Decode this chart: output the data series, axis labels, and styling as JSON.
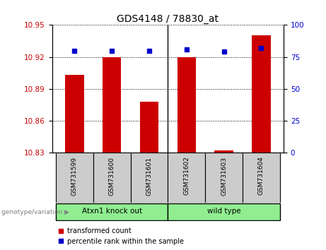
{
  "title": "GDS4148 / 78830_at",
  "categories": [
    "GSM731599",
    "GSM731600",
    "GSM731601",
    "GSM731602",
    "GSM731603",
    "GSM731604"
  ],
  "red_values": [
    10.903,
    10.92,
    10.878,
    10.92,
    10.832,
    10.94
  ],
  "blue_values": [
    80,
    80,
    80,
    81,
    79,
    82
  ],
  "baseline": 10.83,
  "ylim_left": [
    10.83,
    10.95
  ],
  "ylim_right": [
    0,
    100
  ],
  "yticks_left": [
    10.83,
    10.86,
    10.89,
    10.92,
    10.95
  ],
  "yticks_right": [
    0,
    25,
    50,
    75,
    100
  ],
  "group1_label": "Atxn1 knock out",
  "group2_label": "wild type",
  "group1_indices": [
    0,
    1,
    2
  ],
  "group2_indices": [
    3,
    4,
    5
  ],
  "group_label_prefix": "genotype/variation",
  "legend_red": "transformed count",
  "legend_blue": "percentile rank within the sample",
  "bar_color": "#cc0000",
  "dot_color": "#0000cc",
  "group_color": "#90ee90",
  "cell_color": "#cccccc",
  "tick_label_color_left": "#cc0000",
  "tick_label_color_right": "#0000cc",
  "bar_width": 0.5,
  "fig_width": 4.61,
  "fig_height": 3.54
}
